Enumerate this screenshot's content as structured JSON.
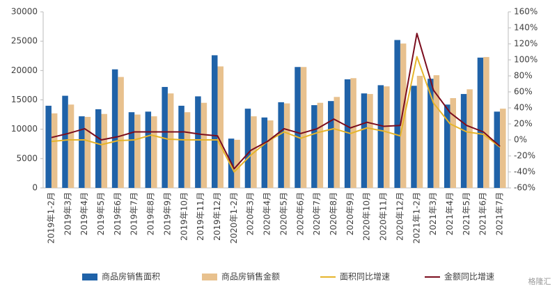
{
  "chart_data": {
    "type": "bar",
    "categories": [
      "2019年1-2月",
      "2019年3月",
      "2019年4月",
      "2019年5月",
      "2019年6月",
      "2019年7月",
      "2019年8月",
      "2019年9月",
      "2019年10月",
      "2019年11月",
      "2019年12月",
      "2020年1-2月",
      "2020年3月",
      "2020年4月",
      "2020年5月",
      "2020年6月",
      "2020年7月",
      "2020年8月",
      "2020年9月",
      "2020年10月",
      "2020年11月",
      "2020年12月",
      "2021年1-2月",
      "2021年3月",
      "2021年4月",
      "2021年5月",
      "2021年6月",
      "2021年7月"
    ],
    "series": [
      {
        "name": "商品房销售面积",
        "type": "bar",
        "color": "#1f62a8",
        "values": [
          14000,
          15700,
          12200,
          13400,
          20200,
          12900,
          13000,
          17200,
          14000,
          15600,
          22600,
          8400,
          13500,
          12000,
          14600,
          20600,
          14100,
          14800,
          18500,
          16100,
          17500,
          25200,
          17400,
          18600,
          14200,
          16000,
          22200,
          13000
        ]
      },
      {
        "name": "商品房销售金额",
        "type": "bar",
        "color": "#e8c18e",
        "values": [
          12700,
          14200,
          12100,
          12600,
          18900,
          12500,
          12200,
          16100,
          12900,
          14500,
          20700,
          8200,
          12200,
          11500,
          14400,
          20600,
          14500,
          15500,
          18700,
          16000,
          17300,
          24600,
          19100,
          19200,
          15300,
          16800,
          22300,
          13500
        ]
      },
      {
        "name": "面积同比增速",
        "type": "line",
        "axis": "y2",
        "color": "#e6b42a",
        "values": [
          -2,
          0,
          0,
          -6,
          -1,
          0,
          6,
          1,
          0,
          0,
          0,
          -40,
          -19,
          -2,
          10,
          2,
          9,
          14,
          8,
          15,
          11,
          5,
          104,
          46,
          20,
          10,
          7,
          -9
        ]
      },
      {
        "name": "金额同比增速",
        "type": "line",
        "axis": "y2",
        "color": "#7b0d1e",
        "values": [
          3,
          8,
          14,
          0,
          4,
          10,
          10,
          10,
          10,
          7,
          5,
          -36,
          -13,
          -2,
          14,
          8,
          14,
          26,
          15,
          22,
          17,
          18,
          133,
          62,
          34,
          18,
          10,
          -8
        ]
      }
    ],
    "ylim": [
      0,
      30000
    ],
    "yticks": [
      0,
      5000,
      10000,
      15000,
      20000,
      25000,
      30000
    ],
    "y2lim": [
      -60,
      160
    ],
    "y2ticks": [
      {
        "value": -60,
        "label": "-60%"
      },
      {
        "value": -40,
        "label": "-40%"
      },
      {
        "value": -20,
        "label": "-20%"
      },
      {
        "value": 0,
        "label": "0%"
      },
      {
        "value": 20,
        "label": "20%"
      },
      {
        "value": 40,
        "label": "40%"
      },
      {
        "value": 60,
        "label": "60%"
      },
      {
        "value": 80,
        "label": "80%"
      },
      {
        "value": 100,
        "label": "100%"
      },
      {
        "value": 120,
        "label": "120%"
      },
      {
        "value": 140,
        "label": "140%"
      },
      {
        "value": 160,
        "label": "160%"
      }
    ],
    "legend": "bottom",
    "watermark": "格隆汇"
  }
}
